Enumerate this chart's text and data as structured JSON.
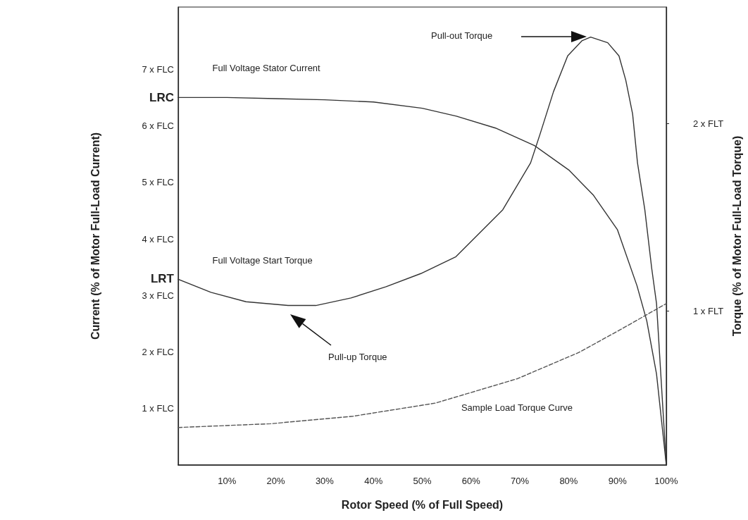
{
  "chart_data": {
    "type": "line",
    "xlabel": "Rotor Speed (% of Full Speed)",
    "ylabel": "Current (% of Motor Full-Load Current)",
    "y2label": "Torque (% of Motor Full-Load Torque)",
    "x": [
      0,
      10,
      20,
      30,
      40,
      50,
      57,
      65,
      73,
      80,
      85,
      90,
      94,
      96,
      98,
      100
    ],
    "series": [
      {
        "name": "Full Voltage Stator Current",
        "color": "#333333",
        "values": [
          6.5,
          6.5,
          6.48,
          6.46,
          6.42,
          6.31,
          6.17,
          5.96,
          5.65,
          5.22,
          4.78,
          4.16,
          3.17,
          2.55,
          1.61,
          0
        ]
      },
      {
        "name": "Full Voltage Start Torque",
        "color": "#333333",
        "axis": "y2",
        "x": [
          0,
          6.7,
          13.9,
          22.5,
          28.2,
          35.4,
          42.6,
          49.7,
          56.9,
          66.5,
          72.2,
          74.1,
          76.9,
          79.8,
          82.7,
          84.5,
          88.0,
          90.3,
          91.7,
          93.1,
          94.1,
          95.6,
          97.0,
          98.0,
          100
        ],
        "values": [
          1.17,
          1.1,
          1.05,
          1.03,
          1.03,
          1.07,
          1.13,
          1.2,
          1.29,
          1.54,
          1.79,
          1.94,
          2.17,
          2.36,
          2.44,
          2.46,
          2.43,
          2.36,
          2.23,
          2.05,
          1.79,
          1.54,
          1.23,
          1.04,
          0.18
        ]
      },
      {
        "name": "Sample Load Torque Curve",
        "color": "#555555",
        "axis": "y2",
        "line_style": "dashed",
        "x": [
          0,
          18.9,
          35.8,
          52.7,
          69.5,
          82.1,
          90.5,
          100
        ],
        "values": [
          0.38,
          0.4,
          0.44,
          0.51,
          0.64,
          0.78,
          0.9,
          1.04
        ]
      }
    ],
    "xlim": [
      0,
      100
    ],
    "xticks": [
      {
        "value": 10,
        "label": "10%"
      },
      {
        "value": 20,
        "label": "20%"
      },
      {
        "value": 30,
        "label": "30%"
      },
      {
        "value": 40,
        "label": "40%"
      },
      {
        "value": 50,
        "label": "50%"
      },
      {
        "value": 60,
        "label": "60%"
      },
      {
        "value": 70,
        "label": "70%"
      },
      {
        "value": 80,
        "label": "80%"
      },
      {
        "value": 90,
        "label": "90%"
      },
      {
        "value": 100,
        "label": "100%"
      }
    ],
    "ylim": [
      0,
      8.1
    ],
    "yticks": [
      {
        "value": 1,
        "label": "1 x FLC"
      },
      {
        "value": 2,
        "label": "2 x FLC"
      },
      {
        "value": 3,
        "label": "3 x FLC"
      },
      {
        "value": 3.3,
        "label": "LRT"
      },
      {
        "value": 4,
        "label": "4 x FLC"
      },
      {
        "value": 5,
        "label": "5 x FLC"
      },
      {
        "value": 6,
        "label": "6 x FLC"
      },
      {
        "value": 6.5,
        "label": "LRC"
      },
      {
        "value": 7,
        "label": "7 x FLC"
      }
    ],
    "y2lim": [
      0.18,
      2.62
    ],
    "y2ticks": [
      {
        "value": 1,
        "label": "1 x FLT"
      },
      {
        "value": 2,
        "label": "2 x FLT"
      }
    ],
    "annotations": [
      "Pull-out Torque",
      "Pull-up Torque"
    ],
    "grid": false,
    "legend": false,
    "marker": "none"
  }
}
